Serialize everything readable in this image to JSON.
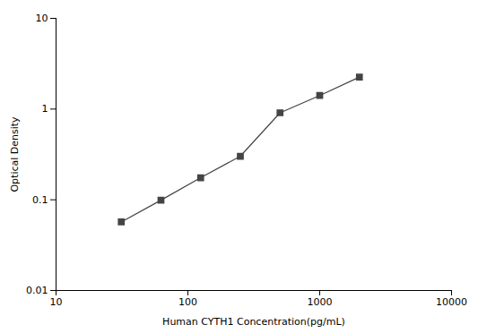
{
  "chart_data": {
    "type": "line",
    "xlabel": "Human CYTH1 Concentration(pg/mL)",
    "ylabel": "Optical Density",
    "x": [
      31.25,
      62.5,
      125,
      250,
      500,
      1000,
      2000
    ],
    "values": [
      0.057,
      0.099,
      0.175,
      0.302,
      0.91,
      1.41,
      2.25
    ],
    "xlim": [
      10,
      10000
    ],
    "ylim": [
      0.01,
      10
    ],
    "xticks": [
      10,
      100,
      1000,
      10000
    ],
    "yticks": [
      0.01,
      0.1,
      1,
      10
    ],
    "log": true,
    "grid": false,
    "color": "#444444",
    "marker": "square",
    "line_style": "solid"
  }
}
